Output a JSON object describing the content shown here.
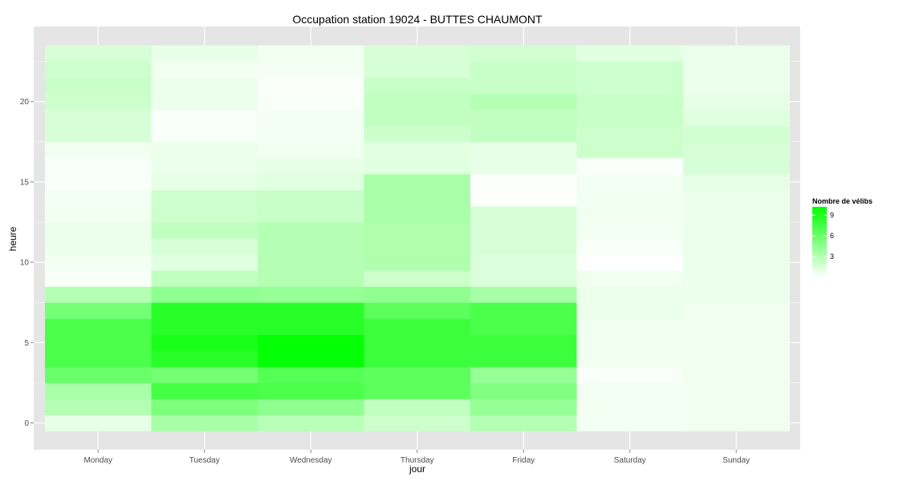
{
  "chart_data": {
    "type": "heatmap",
    "title": "Occupation station 19024 - BUTTES CHAUMONT",
    "xlabel": "jour",
    "ylabel": "heure",
    "x_categories": [
      "Monday",
      "Tuesday",
      "Wednesday",
      "Thursday",
      "Friday",
      "Saturday",
      "Sunday"
    ],
    "y_values": [
      0,
      1,
      2,
      3,
      4,
      5,
      6,
      7,
      8,
      9,
      10,
      11,
      12,
      13,
      14,
      15,
      16,
      17,
      18,
      19,
      20,
      21,
      22,
      23
    ],
    "y_ticks": [
      0,
      5,
      10,
      15,
      20
    ],
    "ylim": [
      -0.5,
      23.5
    ],
    "grid": true,
    "values": [
      [
        1.0,
        3.0,
        3.5,
        6.0,
        7.2,
        7.2,
        7.2,
        5.5,
        3.0,
        0.3,
        0.5,
        0.8,
        0.8,
        0.6,
        0.5,
        0.3,
        0.3,
        0.6,
        1.6,
        1.6,
        2.0,
        2.2,
        2.0,
        1.6
      ],
      [
        3.5,
        5.2,
        7.5,
        5.5,
        8.6,
        9.2,
        8.6,
        8.6,
        4.5,
        2.5,
        1.2,
        1.6,
        2.5,
        2.0,
        2.0,
        1.0,
        0.8,
        0.8,
        0.3,
        0.3,
        0.8,
        0.8,
        0.6,
        1.0
      ],
      [
        2.8,
        4.5,
        7.2,
        6.8,
        10.0,
        10.0,
        8.6,
        8.6,
        4.2,
        3.0,
        3.0,
        3.0,
        3.0,
        2.2,
        2.2,
        1.2,
        1.0,
        0.6,
        0.5,
        0.5,
        0.3,
        0.2,
        0.5,
        0.6
      ],
      [
        2.0,
        2.5,
        6.5,
        6.5,
        7.8,
        7.8,
        7.8,
        6.5,
        4.5,
        2.0,
        3.2,
        3.2,
        3.2,
        3.5,
        3.5,
        3.5,
        1.2,
        1.2,
        2.0,
        2.5,
        2.5,
        2.2,
        1.6,
        1.6
      ],
      [
        3.0,
        4.2,
        5.0,
        4.2,
        7.8,
        7.8,
        7.2,
        7.2,
        3.5,
        1.5,
        1.5,
        1.6,
        1.6,
        1.6,
        0.1,
        0.1,
        1.0,
        1.0,
        2.5,
        2.5,
        3.0,
        2.2,
        2.2,
        1.8
      ],
      [
        0.5,
        0.5,
        0.5,
        0.3,
        0.6,
        0.6,
        0.6,
        0.8,
        0.8,
        0.6,
        0.0,
        0.3,
        0.5,
        0.6,
        0.6,
        0.5,
        0.2,
        2.0,
        2.0,
        2.2,
        2.2,
        2.0,
        2.0,
        1.2
      ],
      [
        0.6,
        0.6,
        0.6,
        0.6,
        0.6,
        0.6,
        0.6,
        0.6,
        0.8,
        0.8,
        0.8,
        0.8,
        0.8,
        0.8,
        0.8,
        1.0,
        1.6,
        1.6,
        1.8,
        1.3,
        1.0,
        0.8,
        0.8,
        0.8
      ]
    ],
    "legend": {
      "title": "Nombre de vélibs",
      "ticks": [
        3,
        6,
        9
      ],
      "range": [
        0,
        10.2
      ],
      "color_low": "#ffffff",
      "color_high": "#00ff00"
    },
    "colors": {
      "panel_background": "#e5e5e5",
      "grid": "#ffffff",
      "tick_label": "#4d4d4d"
    }
  }
}
